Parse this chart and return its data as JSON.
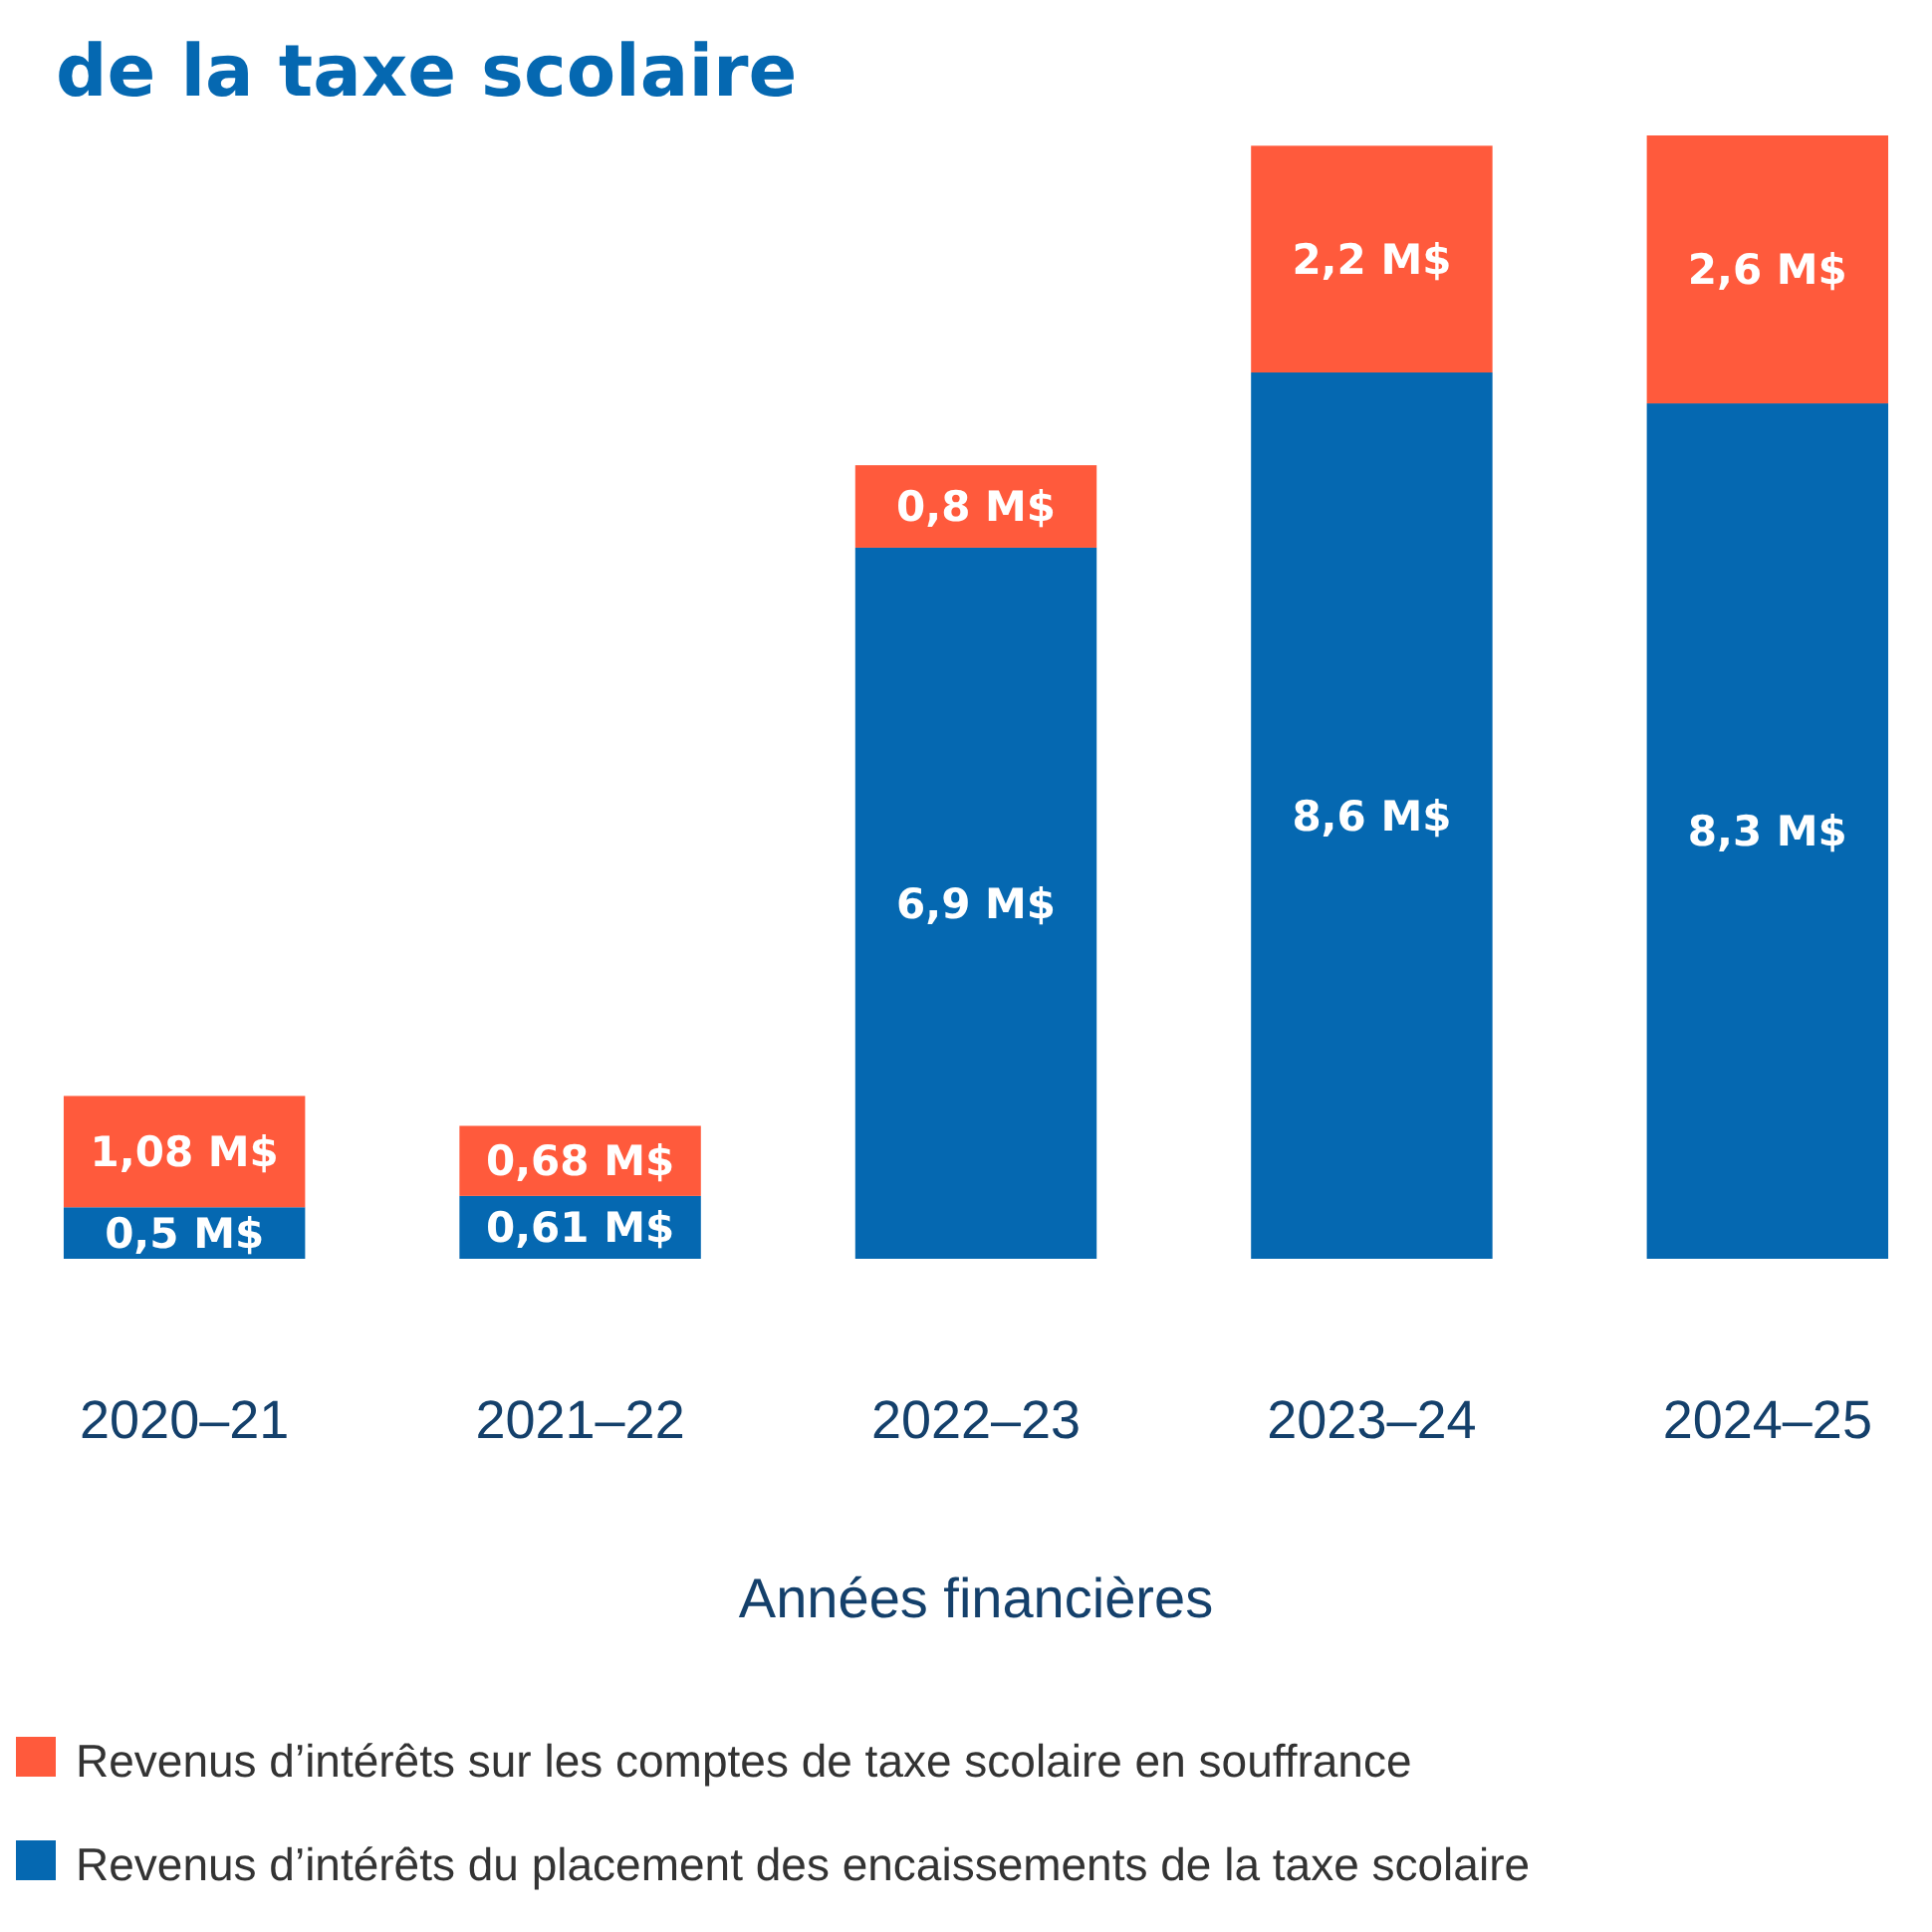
{
  "chart_data": {
    "type": "bar",
    "title": "de la taxe scolaire",
    "xlabel": "Années financières",
    "categories": [
      "2020–21",
      "2021–22",
      "2022–23",
      "2023–24",
      "2024–25"
    ],
    "stacked": true,
    "legend": "bottom",
    "series": [
      {
        "name": "Revenus d’intérêts du placement des encaissements de la taxe scolaire",
        "color": "#0568b1",
        "values": [
          0.5,
          0.61,
          6.9,
          8.6,
          8.3
        ],
        "value_labels": [
          "0,5 M$",
          "0,61 M$",
          "6,9 M$",
          "8,6 M$",
          "8,3 M$"
        ]
      },
      {
        "name": "Revenus d’intérêts sur les comptes de taxe scolaire en souffrance",
        "color": "#ff5a3c",
        "values": [
          1.08,
          0.68,
          0.8,
          2.2,
          2.6
        ],
        "value_labels": [
          "1,08 M$",
          "0,68 M$",
          "0,8 M$",
          "2,2 M$",
          "2,6 M$"
        ]
      }
    ]
  }
}
